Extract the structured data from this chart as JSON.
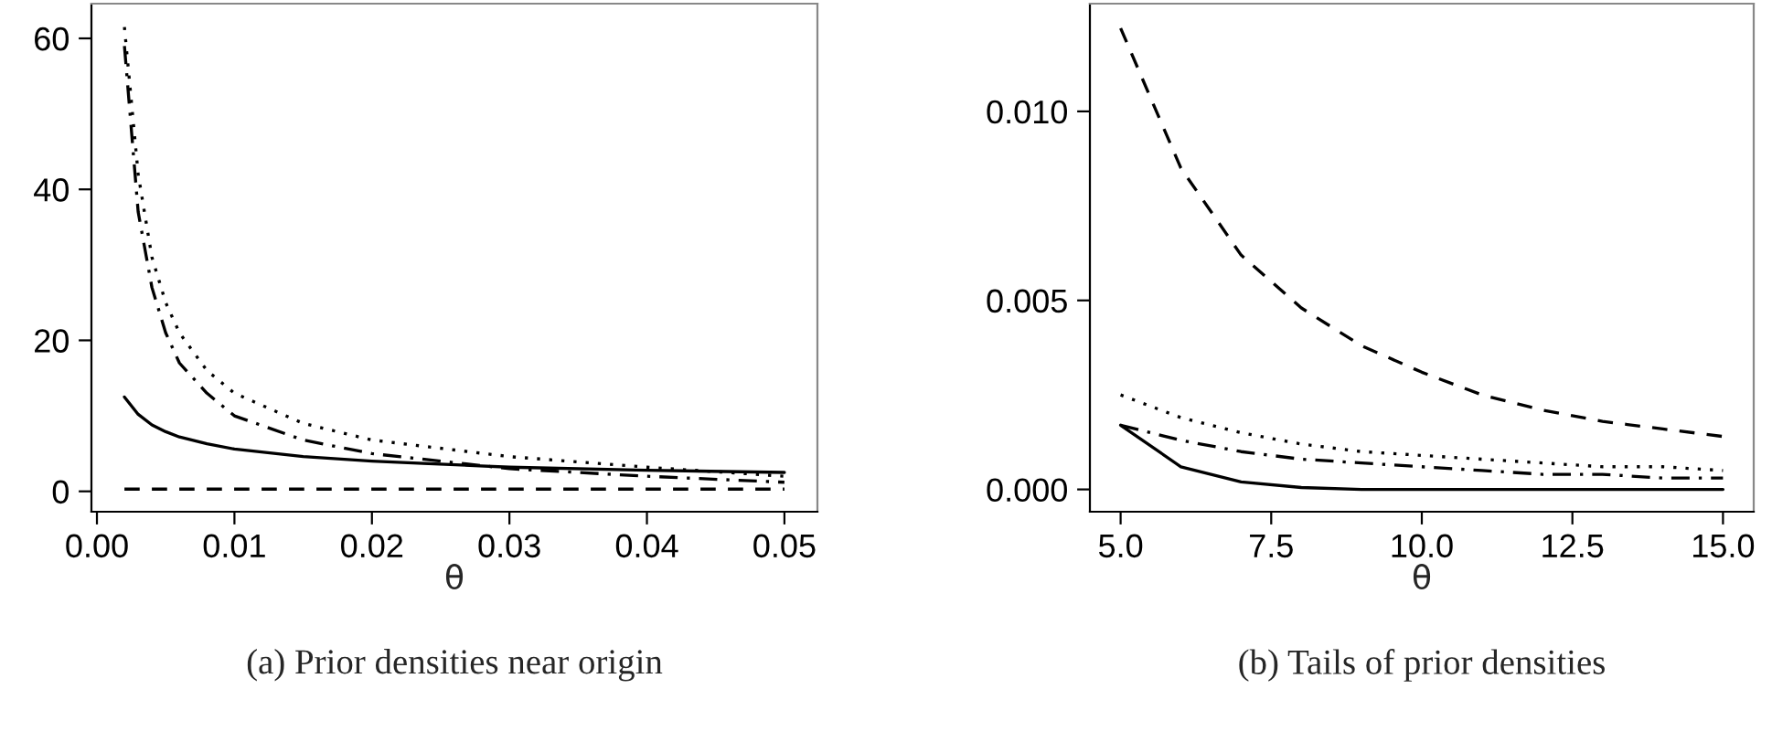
{
  "chart_data": [
    {
      "type": "line",
      "xlabel": "θ",
      "annotations": [
        "(a) Prior densities near origin"
      ],
      "x": [
        0.002,
        0.003,
        0.004,
        0.005,
        0.006,
        0.008,
        0.01,
        0.015,
        0.02,
        0.03,
        0.04,
        0.05
      ],
      "xlim": [
        -0.0004,
        0.0524
      ],
      "xticks": [
        {
          "value": 0,
          "label": "0.00"
        },
        0.01,
        0.02,
        0.03,
        0.04,
        0.05
      ],
      "ylim": [
        -2.7,
        64.6
      ],
      "yticks": [
        0,
        20,
        40,
        60
      ],
      "grid": false,
      "legend": false,
      "series": [
        {
          "color": "#000000",
          "line_style": "solid",
          "values": [
            12.5,
            10.2,
            8.8,
            7.9,
            7.2,
            6.3,
            5.6,
            4.6,
            4.0,
            3.2,
            2.8,
            2.5
          ]
        },
        {
          "color": "#000000",
          "line_style": "dotted",
          "values": [
            61.5,
            42,
            31,
            25,
            21,
            16,
            13,
            9,
            6.8,
            4.6,
            3.2,
            2.0
          ]
        },
        {
          "color": "#000000",
          "line_style": "dashdot",
          "values": [
            59,
            37,
            27,
            21,
            17,
            13,
            10,
            6.8,
            5.0,
            3.0,
            2.0,
            1.2
          ]
        },
        {
          "color": "#000000",
          "line_style": "dashed",
          "values": [
            0.3,
            0.3,
            0.3,
            0.3,
            0.3,
            0.3,
            0.3,
            0.3,
            0.3,
            0.3,
            0.3,
            0.3
          ]
        }
      ]
    },
    {
      "type": "line",
      "xlabel": "θ",
      "annotations": [
        "(b) Tails of prior densities"
      ],
      "x": [
        5,
        6,
        7,
        8,
        9,
        10,
        11,
        12,
        13,
        14,
        15
      ],
      "xlim": [
        4.49,
        15.51
      ],
      "xticks": [
        {
          "value": 5,
          "label": "5.0"
        },
        7.5,
        {
          "value": 10,
          "label": "10.0"
        },
        12.5,
        {
          "value": 15,
          "label": "15.0"
        }
      ],
      "ylim": [
        -0.00059,
        0.01285
      ],
      "yticks": [
        {
          "value": 0,
          "label": "0.000"
        },
        0.005,
        {
          "value": 0.01,
          "label": "0.010"
        }
      ],
      "grid": false,
      "legend": false,
      "series": [
        {
          "color": "#000000",
          "line_style": "solid",
          "values": [
            0.0017,
            0.0006,
            0.0002,
            5e-05,
            0,
            0,
            0,
            0,
            0,
            0,
            0
          ]
        },
        {
          "color": "#000000",
          "line_style": "dotted",
          "values": [
            0.0025,
            0.0019,
            0.0015,
            0.0012,
            0.001,
            0.0009,
            0.0008,
            0.0007,
            0.0006,
            0.0006,
            0.0005
          ]
        },
        {
          "color": "#000000",
          "line_style": "dashdot",
          "values": [
            0.0017,
            0.0013,
            0.001,
            0.0008,
            0.0007,
            0.0006,
            0.0005,
            0.0004,
            0.0004,
            0.0003,
            0.0003
          ]
        },
        {
          "color": "#000000",
          "line_style": "dashed",
          "values": [
            0.0122,
            0.0085,
            0.0062,
            0.0048,
            0.0038,
            0.0031,
            0.0025,
            0.0021,
            0.0018,
            0.0016,
            0.0014
          ]
        }
      ]
    }
  ]
}
